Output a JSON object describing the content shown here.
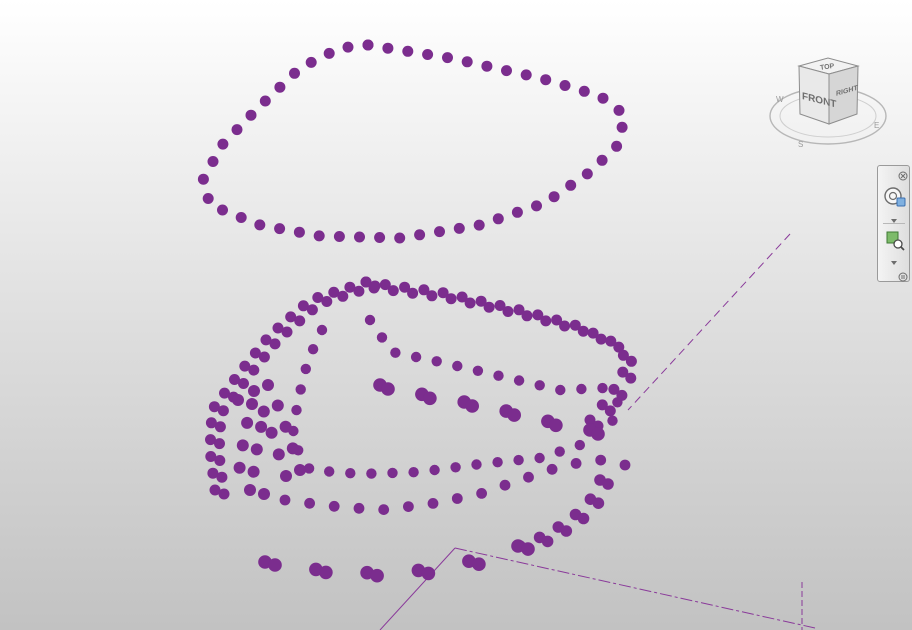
{
  "app": {
    "view": "3D view",
    "point_color": "#7b2d8e",
    "guide_color": "#8a3a9a"
  },
  "viewcube": {
    "faces": {
      "top": "TOP",
      "front": "FRONT",
      "right": "RIGHT"
    }
  },
  "navbar": {
    "items": [
      {
        "name": "close-navbar",
        "icon": "close-icon"
      },
      {
        "name": "steering-wheel",
        "icon": "steering-wheel-icon"
      },
      {
        "name": "steering-wheel-menu",
        "icon": "chevron-down-icon"
      },
      {
        "name": "zoom",
        "icon": "zoom-region-icon"
      },
      {
        "name": "zoom-menu",
        "icon": "chevron-down-icon"
      },
      {
        "name": "customize",
        "icon": "customize-icon"
      }
    ]
  }
}
